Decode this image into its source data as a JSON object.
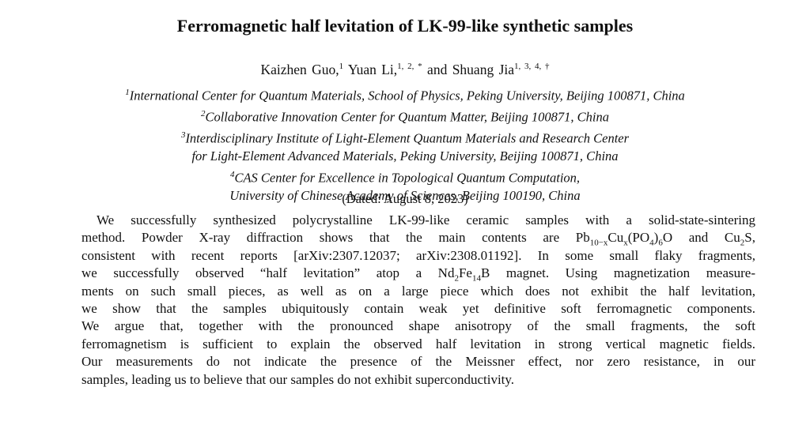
{
  "title": "Ferromagnetic half levitation of LK-99-like synthetic samples",
  "authors": [
    {
      "name": "Kaizhen Guo,",
      "marks": "1"
    },
    {
      "name": "Yuan Li,",
      "marks": "1, 2, *"
    },
    {
      "name": "Shuang Jia",
      "marks": "1, 3, 4, †"
    }
  ],
  "conjunction": "and",
  "affiliations": [
    {
      "number": "1",
      "text": "International Center for Quantum Materials, School of Physics, Peking University, Beijing 100871, China"
    },
    {
      "number": "2",
      "text": "Collaborative Innovation Center for Quantum Matter, Beijing 100871, China"
    },
    {
      "number": "3",
      "text": "Interdisciplinary Institute of Light-Element Quantum Materials and Research Center"
    },
    {
      "text": "for Light-Element Advanced Materials, Peking University, Beijing 100871, China"
    },
    {
      "number": "4",
      "text": "CAS Center for Excellence in Topological Quantum Computation,"
    },
    {
      "text": "University of Chinese Academy of Sciences, Beijing 100190, China"
    }
  ],
  "dated": "(Dated: August 8, 2023)",
  "abstract": [
    [
      "We successfully synthesized polycrystalline LK-99-like ceramic samples with a solid-state-sintering"
    ],
    [
      "method. Powder X-ray diffraction shows that the main contents are Pb",
      {
        "sub": "10−x"
      },
      "Cu",
      {
        "sub": "x"
      },
      "(PO",
      {
        "sub": "4"
      },
      ")",
      {
        "sub": "6"
      },
      "O and Cu",
      {
        "sub": "2"
      },
      "S,"
    ],
    [
      "consistent with recent reports [arXiv:2307.12037; arXiv:2308.01192]. In some small flaky fragments,"
    ],
    [
      "we successfully observed “half levitation” atop a Nd",
      {
        "sub": "2"
      },
      "Fe",
      {
        "sub": "14"
      },
      "B magnet. Using magnetization measure-"
    ],
    [
      "ments on such small pieces, as well as on a large piece which does not exhibit the half levitation,"
    ],
    [
      "we show that the samples ubiquitously contain weak yet definitive soft ferromagnetic components."
    ],
    [
      "We argue that, together with the pronounced shape anisotropy of the small fragments, the soft"
    ],
    [
      "ferromagnetism is sufficient to explain the observed half levitation in strong vertical magnetic fields."
    ],
    [
      "Our measurements do not indicate the presence of the Meissner effect, nor zero resistance, in our"
    ],
    [
      "samples, leading us to believe that our samples do not exhibit superconductivity."
    ]
  ]
}
